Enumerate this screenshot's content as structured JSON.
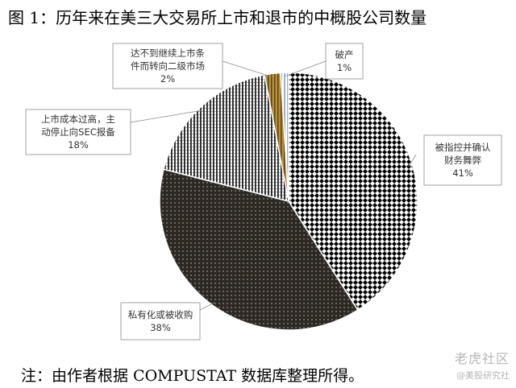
{
  "title": "图 1：历年来在美三大交易所上市和退市的中概股公司数量",
  "note": "注：由作者根据 COMPUSTAT 数据库整理所得。",
  "watermark": {
    "main": "老虎社区",
    "sub": "@美股研究社"
  },
  "chart_data": {
    "type": "pie",
    "title": "",
    "start_angle_deg": 0,
    "direction": "clockwise",
    "slices": [
      {
        "label_lines": [
          "被指控并确认",
          "财务舞弊"
        ],
        "value": 41,
        "value_label": "41%",
        "pattern": "dots",
        "color": "#000000"
      },
      {
        "label_lines": [
          "私有化或被收购"
        ],
        "value": 38,
        "value_label": "38%",
        "pattern": "dark-dots",
        "color": "#2a2622"
      },
      {
        "label_lines": [
          "上市成本过高，主",
          "动停止向SEC报备"
        ],
        "value": 18,
        "value_label": "18%",
        "pattern": "vlines",
        "color": "#333333"
      },
      {
        "label_lines": [
          "达不到继续上市条",
          "件而转向二级市场"
        ],
        "value": 2,
        "value_label": "2%",
        "pattern": "gold",
        "color": "#b8923a"
      },
      {
        "label_lines": [
          "破产"
        ],
        "value": 1,
        "value_label": "1%",
        "pattern": "light-blue",
        "color": "#9bb3d3"
      }
    ]
  }
}
